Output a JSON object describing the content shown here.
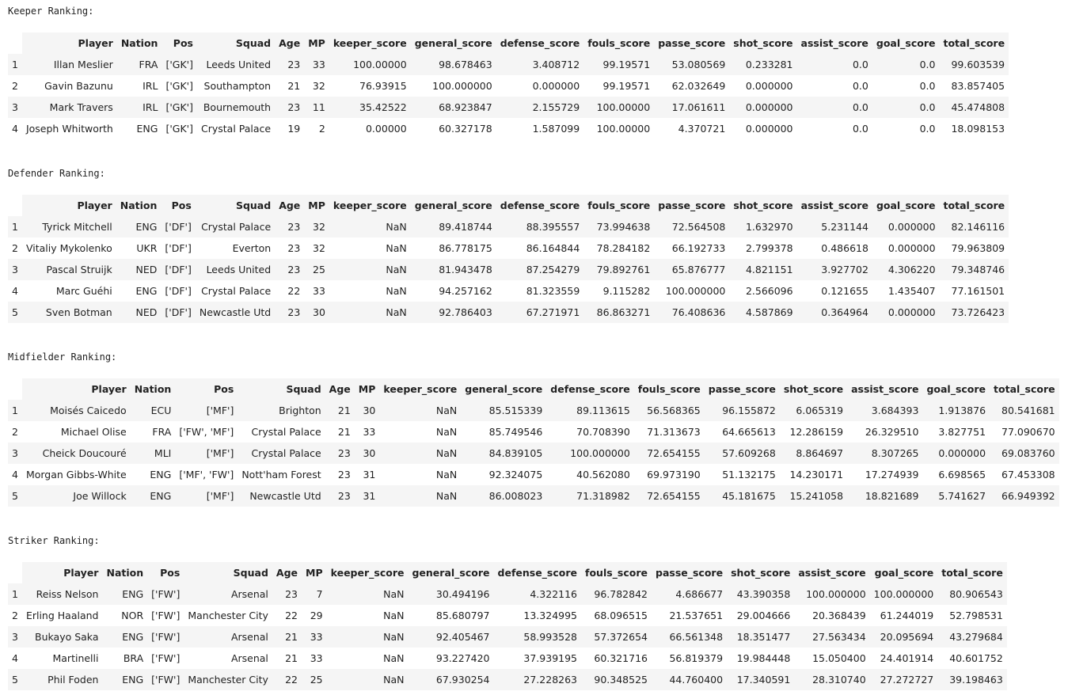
{
  "sections": {
    "keeper": {
      "title": "Keeper Ranking:",
      "columns": [
        "",
        "Player",
        "Nation",
        "Pos",
        "Squad",
        "Age",
        "MP",
        "keeper_score",
        "general_score",
        "defense_score",
        "fouls_score",
        "passe_score",
        "shot_score",
        "assist_score",
        "goal_score",
        "total_score"
      ],
      "rows": [
        [
          "1",
          "Illan Meslier",
          "FRA",
          "['GK']",
          "Leeds United",
          "23",
          "33",
          "100.00000",
          "98.678463",
          "3.408712",
          "99.19571",
          "53.080569",
          "0.233281",
          "0.0",
          "0.0",
          "99.603539"
        ],
        [
          "2",
          "Gavin Bazunu",
          "IRL",
          "['GK']",
          "Southampton",
          "21",
          "32",
          "76.93915",
          "100.000000",
          "0.000000",
          "99.19571",
          "62.032649",
          "0.000000",
          "0.0",
          "0.0",
          "83.857405"
        ],
        [
          "3",
          "Mark Travers",
          "IRL",
          "['GK']",
          "Bournemouth",
          "23",
          "11",
          "35.42522",
          "68.923847",
          "2.155729",
          "100.00000",
          "17.061611",
          "0.000000",
          "0.0",
          "0.0",
          "45.474808"
        ],
        [
          "4",
          "Joseph Whitworth",
          "ENG",
          "['GK']",
          "Crystal Palace",
          "19",
          "2",
          "0.00000",
          "60.327178",
          "1.587099",
          "100.00000",
          "4.370721",
          "0.000000",
          "0.0",
          "0.0",
          "18.098153"
        ]
      ]
    },
    "defender": {
      "title": "Defender Ranking:",
      "columns": [
        "",
        "Player",
        "Nation",
        "Pos",
        "Squad",
        "Age",
        "MP",
        "keeper_score",
        "general_score",
        "defense_score",
        "fouls_score",
        "passe_score",
        "shot_score",
        "assist_score",
        "goal_score",
        "total_score"
      ],
      "rows": [
        [
          "1",
          "Tyrick Mitchell",
          "ENG",
          "['DF']",
          "Crystal Palace",
          "23",
          "32",
          "NaN",
          "89.418744",
          "88.395557",
          "73.994638",
          "72.564508",
          "1.632970",
          "5.231144",
          "0.000000",
          "82.146116"
        ],
        [
          "2",
          "Vitaliy Mykolenko",
          "UKR",
          "['DF']",
          "Everton",
          "23",
          "32",
          "NaN",
          "86.778175",
          "86.164844",
          "78.284182",
          "66.192733",
          "2.799378",
          "0.486618",
          "0.000000",
          "79.963809"
        ],
        [
          "3",
          "Pascal Struijk",
          "NED",
          "['DF']",
          "Leeds United",
          "23",
          "25",
          "NaN",
          "81.943478",
          "87.254279",
          "79.892761",
          "65.876777",
          "4.821151",
          "3.927702",
          "4.306220",
          "79.348746"
        ],
        [
          "4",
          "Marc Guéhi",
          "ENG",
          "['DF']",
          "Crystal Palace",
          "22",
          "33",
          "NaN",
          "94.257162",
          "81.323559",
          "9.115282",
          "100.000000",
          "2.566096",
          "0.121655",
          "1.435407",
          "77.161501"
        ],
        [
          "5",
          "Sven Botman",
          "NED",
          "['DF']",
          "Newcastle Utd",
          "23",
          "30",
          "NaN",
          "92.786403",
          "67.271971",
          "86.863271",
          "76.408636",
          "4.587869",
          "0.364964",
          "0.000000",
          "73.726423"
        ]
      ]
    },
    "midfielder": {
      "title": "Midfielder Ranking:",
      "columns": [
        "",
        "Player",
        "Nation",
        "Pos",
        "Squad",
        "Age",
        "MP",
        "keeper_score",
        "general_score",
        "defense_score",
        "fouls_score",
        "passe_score",
        "shot_score",
        "assist_score",
        "goal_score",
        "total_score"
      ],
      "rows": [
        [
          "1",
          "Moisés Caicedo",
          "ECU",
          "['MF']",
          "Brighton",
          "21",
          "30",
          "NaN",
          "85.515339",
          "89.113615",
          "56.568365",
          "96.155872",
          "6.065319",
          "3.684393",
          "1.913876",
          "80.541681"
        ],
        [
          "2",
          "Michael Olise",
          "FRA",
          "['FW', 'MF']",
          "Crystal Palace",
          "21",
          "33",
          "NaN",
          "85.749546",
          "70.708390",
          "71.313673",
          "64.665613",
          "12.286159",
          "26.329510",
          "3.827751",
          "77.090670"
        ],
        [
          "3",
          "Cheick Doucouré",
          "MLI",
          "['MF']",
          "Crystal Palace",
          "23",
          "30",
          "NaN",
          "84.839105",
          "100.000000",
          "72.654155",
          "57.609268",
          "8.864697",
          "8.307265",
          "0.000000",
          "69.083760"
        ],
        [
          "4",
          "Morgan Gibbs-White",
          "ENG",
          "['MF', 'FW']",
          "Nott'ham Forest",
          "23",
          "31",
          "NaN",
          "92.324075",
          "40.562080",
          "69.973190",
          "51.132175",
          "14.230171",
          "17.274939",
          "6.698565",
          "67.453308"
        ],
        [
          "5",
          "Joe Willock",
          "ENG",
          "['MF']",
          "Newcastle Utd",
          "23",
          "31",
          "NaN",
          "86.008023",
          "71.318982",
          "72.654155",
          "45.181675",
          "15.241058",
          "18.821689",
          "5.741627",
          "66.949392"
        ]
      ]
    },
    "striker": {
      "title": "Striker Ranking:",
      "columns": [
        "",
        "Player",
        "Nation",
        "Pos",
        "Squad",
        "Age",
        "MP",
        "keeper_score",
        "general_score",
        "defense_score",
        "fouls_score",
        "passe_score",
        "shot_score",
        "assist_score",
        "goal_score",
        "total_score"
      ],
      "rows": [
        [
          "1",
          "Reiss Nelson",
          "ENG",
          "['FW']",
          "Arsenal",
          "23",
          "7",
          "NaN",
          "30.494196",
          "4.322116",
          "96.782842",
          "4.686677",
          "43.390358",
          "100.000000",
          "100.000000",
          "80.906543"
        ],
        [
          "2",
          "Erling Haaland",
          "NOR",
          "['FW']",
          "Manchester City",
          "22",
          "29",
          "NaN",
          "85.680797",
          "13.324995",
          "68.096515",
          "21.537651",
          "29.004666",
          "20.368439",
          "61.244019",
          "52.798531"
        ],
        [
          "3",
          "Bukayo Saka",
          "ENG",
          "['FW']",
          "Arsenal",
          "21",
          "33",
          "NaN",
          "92.405467",
          "58.993528",
          "57.372654",
          "66.561348",
          "18.351477",
          "27.563434",
          "20.095694",
          "43.279684"
        ],
        [
          "4",
          "Martinelli",
          "BRA",
          "['FW']",
          "Arsenal",
          "21",
          "33",
          "NaN",
          "93.227420",
          "37.939195",
          "60.321716",
          "56.819379",
          "19.984448",
          "15.050400",
          "24.401914",
          "40.601752"
        ],
        [
          "5",
          "Phil Foden",
          "ENG",
          "['FW']",
          "Manchester City",
          "22",
          "25",
          "NaN",
          "67.930254",
          "27.228263",
          "90.348525",
          "44.760400",
          "17.340591",
          "28.310740",
          "27.272727",
          "39.198463"
        ]
      ]
    }
  }
}
